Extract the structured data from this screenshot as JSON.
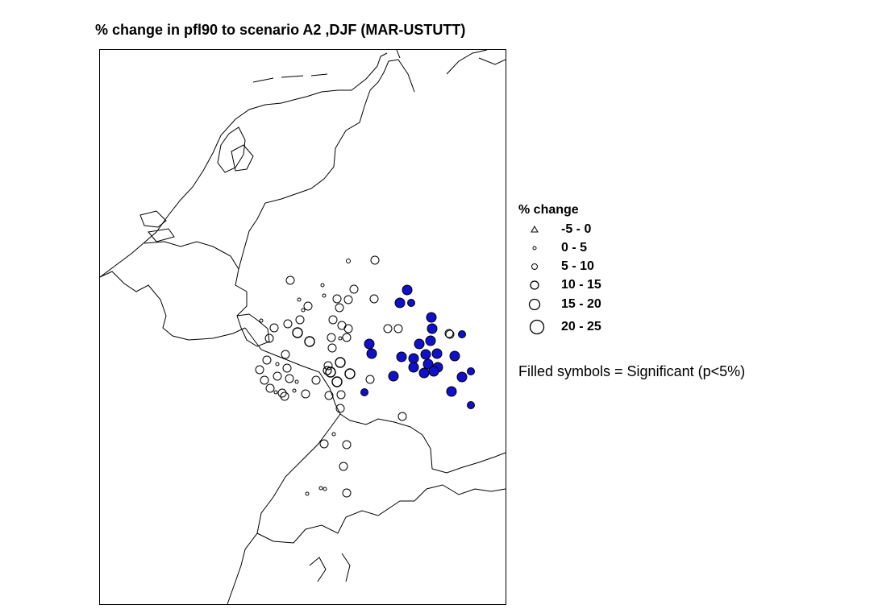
{
  "title": "% change in pfl90 to scenario A2 ,DJF (MAR-USTUTT)",
  "legend": {
    "title": "% change",
    "classes": [
      {
        "label": "-5 - 0",
        "symbol": "triangle"
      },
      {
        "label": "0 - 5",
        "symbol": "circle-size-1"
      },
      {
        "label": "5 - 10",
        "symbol": "circle-size-2"
      },
      {
        "label": "10 - 15",
        "symbol": "circle-size-3"
      },
      {
        "label": "15 - 20",
        "symbol": "circle-size-4"
      },
      {
        "label": "20 - 25",
        "symbol": "circle-size-5"
      }
    ],
    "note": "Filled symbols = Significant (p<5%)"
  },
  "colors": {
    "significant": "#1010cc",
    "outline": "#000000",
    "coastline": "#000000"
  },
  "map": {
    "region": "Netherlands, Belgium, Germany, Switzerland, northern Italy",
    "stations_hollow_count": 67,
    "stations_filled_count": 27
  }
}
